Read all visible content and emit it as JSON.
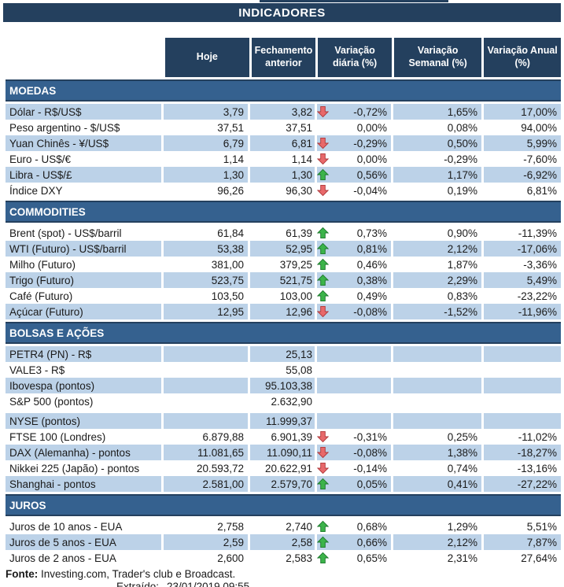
{
  "title": "INDICADORES",
  "columns": [
    {
      "label": "Hoje",
      "key": "hoje"
    },
    {
      "label": "Fechamento anterior",
      "key": "fech"
    },
    {
      "label": "Variação diária (%)",
      "key": "diaria"
    },
    {
      "label": "Variação Semanal (%)",
      "key": "semanal"
    },
    {
      "label": "Variação Anual (%)",
      "key": "anual"
    }
  ],
  "colors": {
    "navy": "#24405E",
    "section_band": "#35618F",
    "stripe": "#BCD2E8",
    "arrow_up_fill": "#3CB44A",
    "arrow_up_stroke": "#1E7A2E",
    "arrow_down_fill": "#E8696B",
    "arrow_down_stroke": "#B03A3C"
  },
  "sections": [
    {
      "name": "MOEDAS",
      "rows": [
        {
          "label": "Dólar - R$/US$",
          "hoje": "3,79",
          "fech": "3,82",
          "arrow": "down",
          "diaria": "-0,72%",
          "semanal": "1,65%",
          "anual": "17,00%",
          "shade": true
        },
        {
          "label": "Peso argentino - $/US$",
          "hoje": "37,51",
          "fech": "37,51",
          "arrow": "",
          "diaria": "0,00%",
          "semanal": "0,08%",
          "anual": "94,00%",
          "shade": false
        },
        {
          "label": "Yuan Chinês - ¥/US$",
          "hoje": "6,79",
          "fech": "6,81",
          "arrow": "down",
          "diaria": "-0,29%",
          "semanal": "0,50%",
          "anual": "5,99%",
          "shade": true
        },
        {
          "label": "Euro - US$/€",
          "hoje": "1,14",
          "fech": "1,14",
          "arrow": "down",
          "diaria": "0,00%",
          "semanal": "-0,29%",
          "anual": "-7,60%",
          "shade": false
        },
        {
          "label": "Libra - US$/£",
          "hoje": "1,30",
          "fech": "1,30",
          "arrow": "up",
          "diaria": "0,56%",
          "semanal": "1,17%",
          "anual": "-6,92%",
          "shade": true
        },
        {
          "label": "Índice DXY",
          "hoje": "96,26",
          "fech": "96,30",
          "arrow": "down",
          "diaria": "-0,04%",
          "semanal": "0,19%",
          "anual": "6,81%",
          "shade": false
        }
      ]
    },
    {
      "name": "COMMODITIES",
      "rows": [
        {
          "label": "Brent (spot) - US$/barril",
          "hoje": "61,84",
          "fech": "61,39",
          "arrow": "up",
          "diaria": "0,73%",
          "semanal": "0,90%",
          "anual": "-11,39%",
          "shade": false
        },
        {
          "label": "WTI (Futuro) - US$/barril",
          "hoje": "53,38",
          "fech": "52,95",
          "arrow": "up",
          "diaria": "0,81%",
          "semanal": "2,12%",
          "anual": "-17,06%",
          "shade": true
        },
        {
          "label": "Milho (Futuro)",
          "hoje": "381,00",
          "fech": "379,25",
          "arrow": "up",
          "diaria": "0,46%",
          "semanal": "1,87%",
          "anual": "-3,36%",
          "shade": false
        },
        {
          "label": "Trigo (Futuro)",
          "hoje": "523,75",
          "fech": "521,75",
          "arrow": "up",
          "diaria": "0,38%",
          "semanal": "2,29%",
          "anual": "5,49%",
          "shade": true
        },
        {
          "label": "Café (Futuro)",
          "hoje": "103,50",
          "fech": "103,00",
          "arrow": "up",
          "diaria": "0,49%",
          "semanal": "0,83%",
          "anual": "-23,22%",
          "shade": false
        },
        {
          "label": "Açúcar (Futuro)",
          "hoje": "12,95",
          "fech": "12,96",
          "arrow": "down",
          "diaria": "-0,08%",
          "semanal": "-1,52%",
          "anual": "-11,96%",
          "shade": true
        }
      ]
    },
    {
      "name": "BOLSAS E AÇÕES",
      "rows": [
        {
          "label": "PETR4 (PN) - R$",
          "hoje": "",
          "fech": "25,13",
          "arrow": "",
          "diaria": "",
          "semanal": "",
          "anual": "",
          "shade": true
        },
        {
          "label": "VALE3 - R$",
          "hoje": "",
          "fech": "55,08",
          "arrow": "",
          "diaria": "",
          "semanal": "",
          "anual": "",
          "shade": false
        },
        {
          "label": "Ibovespa (pontos)",
          "hoje": "",
          "fech": "95.103,38",
          "arrow": "",
          "diaria": "",
          "semanal": "",
          "anual": "",
          "shade": true
        },
        {
          "label": "S&P 500 (pontos)",
          "hoje": "",
          "fech": "2.632,90",
          "arrow": "",
          "diaria": "",
          "semanal": "",
          "anual": "",
          "shade": false,
          "gap_after": true
        },
        {
          "label": "NYSE (pontos)",
          "hoje": "",
          "fech": "11.999,37",
          "arrow": "",
          "diaria": "",
          "semanal": "",
          "anual": "",
          "shade": true
        },
        {
          "label": "FTSE 100 (Londres)",
          "hoje": "6.879,88",
          "fech": "6.901,39",
          "arrow": "down",
          "diaria": "-0,31%",
          "semanal": "0,25%",
          "anual": "-11,02%",
          "shade": false
        },
        {
          "label": "DAX (Alemanha) - pontos",
          "hoje": "11.081,65",
          "fech": "11.090,11",
          "arrow": "down",
          "diaria": "-0,08%",
          "semanal": "1,38%",
          "anual": "-18,27%",
          "shade": true
        },
        {
          "label": "Nikkei 225 (Japão) - pontos",
          "hoje": "20.593,72",
          "fech": "20.622,91",
          "arrow": "down",
          "diaria": "-0,14%",
          "semanal": "0,74%",
          "anual": "-13,16%",
          "shade": false
        },
        {
          "label": "Shanghai - pontos",
          "hoje": "2.581,00",
          "fech": "2.579,70",
          "arrow": "up",
          "diaria": "0,05%",
          "semanal": "0,41%",
          "anual": "-27,22%",
          "shade": true
        }
      ]
    },
    {
      "name": "JUROS",
      "rows": [
        {
          "label": "Juros de 10 anos - EUA",
          "hoje": "2,758",
          "fech": "2,740",
          "arrow": "up",
          "diaria": "0,68%",
          "semanal": "1,29%",
          "anual": "5,51%",
          "shade": false
        },
        {
          "label": "Juros de 5 anos - EUA",
          "hoje": "2,59",
          "fech": "2,58",
          "arrow": "up",
          "diaria": "0,66%",
          "semanal": "2,12%",
          "anual": "7,87%",
          "shade": true
        },
        {
          "label": "Juros de 2 anos - EUA",
          "hoje": "2,600",
          "fech": "2,583",
          "arrow": "up",
          "diaria": "0,65%",
          "semanal": "2,31%",
          "anual": "27,64%",
          "shade": false
        }
      ]
    }
  ],
  "footer": {
    "fonte_label": "Fonte:",
    "fonte_text": " Investing.com, Trader's club e Broadcast.",
    "extraido_label": "Extraído:",
    "extraido_value": "23/01/2019 09:55"
  }
}
